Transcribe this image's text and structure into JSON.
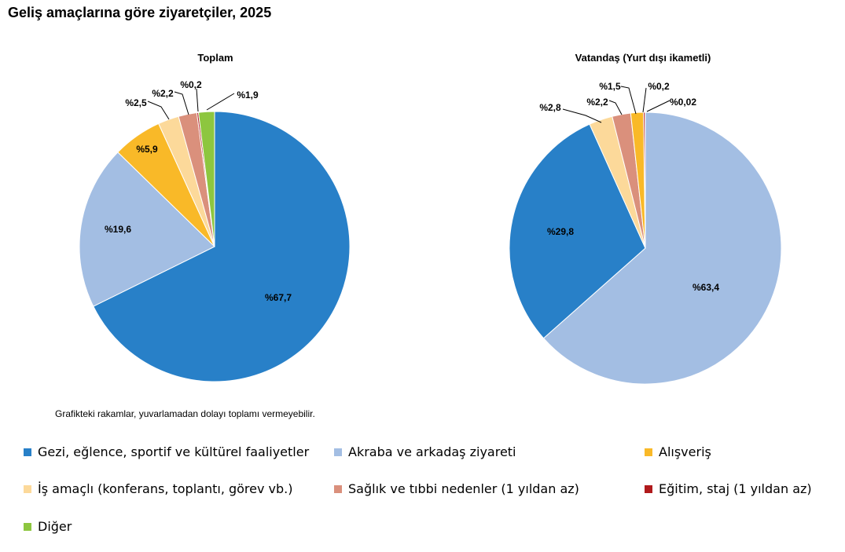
{
  "title": "Geliş amaçlarına göre ziyaretçiler, 2025",
  "note": "Grafikteki rakamlar, yuvarlamadan dolayı toplamı vermeyebilir.",
  "chart_data": [
    {
      "type": "pie",
      "title": "Toplam",
      "slices": [
        {
          "label": "Gezi, eğlence, sportif ve kültürel faaliyetler",
          "value": 67.7,
          "text": "%67,7",
          "color": "#2880C8"
        },
        {
          "label": "Akraba ve arkadaş ziyareti",
          "value": 19.6,
          "text": "%19,6",
          "color": "#A3BEE3"
        },
        {
          "label": "Alışveriş",
          "value": 5.9,
          "text": "%5,9",
          "color": "#F9B928"
        },
        {
          "label": "İş amaçlı (konferans, toplantı, görev vb.)",
          "value": 2.5,
          "text": "%2,5",
          "color": "#FCD99A"
        },
        {
          "label": "Sağlık ve tıbbi nedenler (1 yıldan az)",
          "value": 2.2,
          "text": "%2,2",
          "color": "#DA907C"
        },
        {
          "label": "Eğitim, staj (1 yıldan az)",
          "value": 0.2,
          "text": "%0,2",
          "color": "#B01A1C"
        },
        {
          "label": "Diğer",
          "value": 1.9,
          "text": "%1,9",
          "color": "#8DC63F"
        }
      ]
    },
    {
      "type": "pie",
      "title": "Vatandaş (Yurt dışı ikametli)",
      "slices": [
        {
          "label": "Akraba ve arkadaş ziyareti",
          "value": 63.4,
          "text": "%63,4",
          "color": "#A3BEE3"
        },
        {
          "label": "Gezi, eğlence, sportif ve kültürel faaliyetler",
          "value": 29.8,
          "text": "%29,8",
          "color": "#2880C8"
        },
        {
          "label": "İş amaçlı (konferans, toplantı, görev vb.)",
          "value": 2.8,
          "text": "%2,8",
          "color": "#FCD99A"
        },
        {
          "label": "Sağlık ve tıbbi nedenler (1 yıldan az)",
          "value": 2.2,
          "text": "%2,2",
          "color": "#DA907C"
        },
        {
          "label": "Alışveriş",
          "value": 1.5,
          "text": "%1,5",
          "color": "#F9B928"
        },
        {
          "label": "Eğitim, staj (1 yıldan az)",
          "value": 0.2,
          "text": "%0,2",
          "color": "#B01A1C"
        },
        {
          "label": "Diğer",
          "value": 0.02,
          "text": "%0,02",
          "color": "#8DC63F"
        }
      ]
    }
  ],
  "legend": [
    {
      "label": "Gezi, eğlence, sportif ve kültürel faaliyetler",
      "color": "#2880C8"
    },
    {
      "label": "Akraba ve arkadaş ziyareti",
      "color": "#A3BEE3"
    },
    {
      "label": "Alışveriş",
      "color": "#F9B928"
    },
    {
      "label": "İş amaçlı (konferans, toplantı, görev vb.)",
      "color": "#FCD99A"
    },
    {
      "label": "Sağlık ve tıbbi nedenler (1 yıldan az)",
      "color": "#DA907C"
    },
    {
      "label": "Eğitim, staj (1 yıldan az)",
      "color": "#B01A1C"
    },
    {
      "label": "Diğer",
      "color": "#8DC63F"
    }
  ]
}
